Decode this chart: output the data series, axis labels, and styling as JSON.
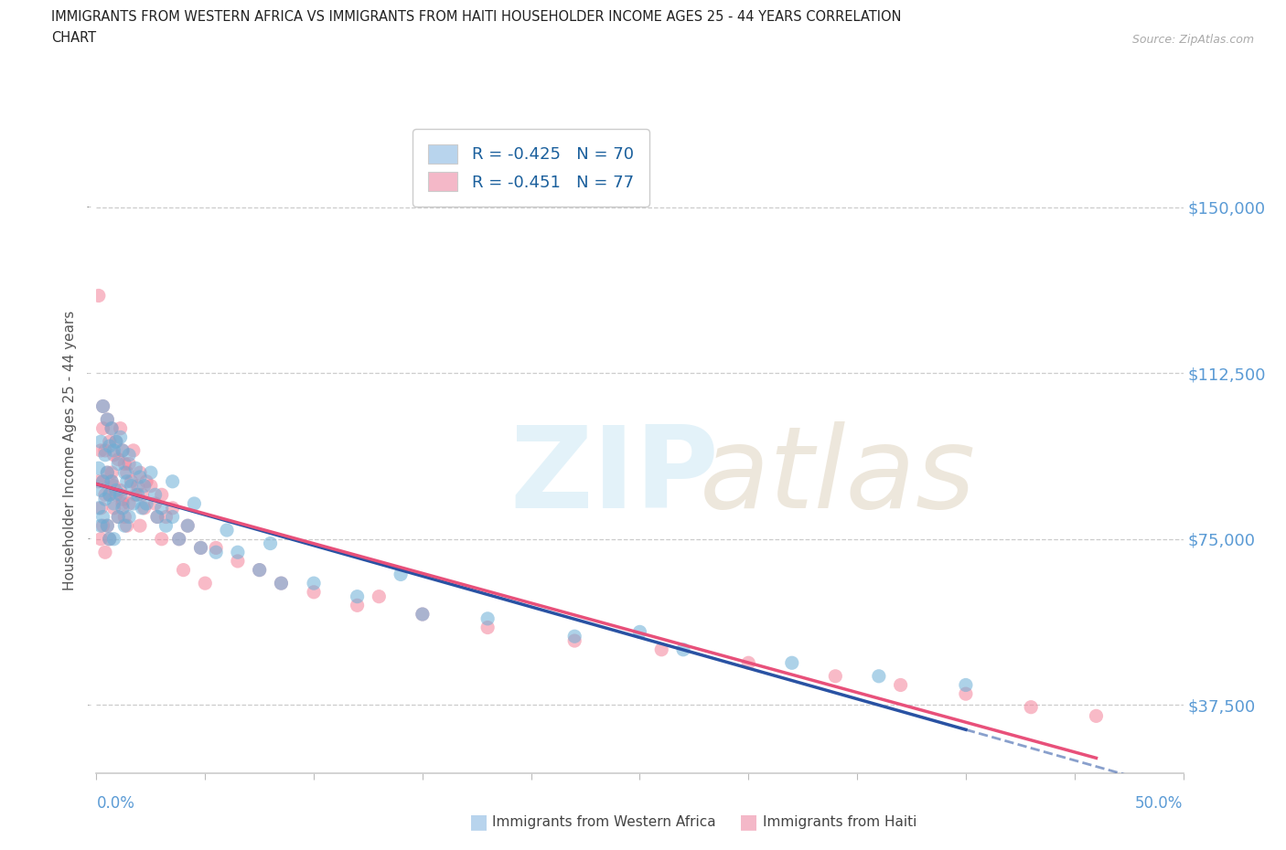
{
  "title_line1": "IMMIGRANTS FROM WESTERN AFRICA VS IMMIGRANTS FROM HAITI HOUSEHOLDER INCOME AGES 25 - 44 YEARS CORRELATION",
  "title_line2": "CHART",
  "source": "Source: ZipAtlas.com",
  "ylabel": "Householder Income Ages 25 - 44 years",
  "y_ticks": [
    37500,
    75000,
    112500,
    150000
  ],
  "y_tick_labels": [
    "$37,500",
    "$75,000",
    "$112,500",
    "$150,000"
  ],
  "legend1_label": "R = -0.425   N = 70",
  "legend2_label": "R = -0.451   N = 77",
  "legend1_fill": "#b8d4ed",
  "legend2_fill": "#f4b8c8",
  "blue_dot_color": "#6aaed6",
  "pink_dot_color": "#f4829a",
  "blue_line_color": "#2952a3",
  "pink_line_color": "#e8507a",
  "tick_label_color": "#5b9bd5",
  "legend_text_color": "#1a5f9c",
  "background_color": "#ffffff",
  "x_min": 0.0,
  "x_max": 0.5,
  "y_min": 22000,
  "y_max": 168000,
  "blue_scatter_x": [
    0.001,
    0.001,
    0.002,
    0.002,
    0.002,
    0.003,
    0.003,
    0.003,
    0.004,
    0.004,
    0.005,
    0.005,
    0.005,
    0.006,
    0.006,
    0.006,
    0.007,
    0.007,
    0.008,
    0.008,
    0.008,
    0.009,
    0.009,
    0.01,
    0.01,
    0.011,
    0.011,
    0.012,
    0.012,
    0.013,
    0.013,
    0.014,
    0.015,
    0.015,
    0.016,
    0.017,
    0.018,
    0.019,
    0.02,
    0.021,
    0.022,
    0.023,
    0.025,
    0.027,
    0.028,
    0.03,
    0.032,
    0.035,
    0.038,
    0.042,
    0.048,
    0.055,
    0.065,
    0.075,
    0.085,
    0.1,
    0.12,
    0.15,
    0.18,
    0.22,
    0.27,
    0.32,
    0.36,
    0.4,
    0.035,
    0.045,
    0.06,
    0.08,
    0.14,
    0.25
  ],
  "blue_scatter_y": [
    91000,
    82000,
    97000,
    86000,
    78000,
    105000,
    88000,
    80000,
    94000,
    84000,
    102000,
    90000,
    78000,
    96000,
    85000,
    75000,
    100000,
    88000,
    95000,
    83000,
    75000,
    97000,
    86000,
    92000,
    80000,
    98000,
    85000,
    95000,
    82000,
    90000,
    78000,
    88000,
    94000,
    80000,
    87000,
    83000,
    91000,
    85000,
    89000,
    82000,
    87000,
    83000,
    90000,
    85000,
    80000,
    82000,
    78000,
    80000,
    75000,
    78000,
    73000,
    72000,
    72000,
    68000,
    65000,
    65000,
    62000,
    58000,
    57000,
    53000,
    50000,
    47000,
    44000,
    42000,
    88000,
    83000,
    77000,
    74000,
    67000,
    54000
  ],
  "pink_scatter_x": [
    0.001,
    0.001,
    0.002,
    0.002,
    0.002,
    0.003,
    0.003,
    0.003,
    0.004,
    0.004,
    0.004,
    0.005,
    0.005,
    0.005,
    0.006,
    0.006,
    0.006,
    0.007,
    0.007,
    0.008,
    0.008,
    0.009,
    0.009,
    0.01,
    0.01,
    0.011,
    0.011,
    0.012,
    0.012,
    0.013,
    0.013,
    0.014,
    0.014,
    0.015,
    0.015,
    0.016,
    0.017,
    0.018,
    0.019,
    0.02,
    0.021,
    0.022,
    0.023,
    0.025,
    0.027,
    0.028,
    0.03,
    0.032,
    0.035,
    0.038,
    0.042,
    0.048,
    0.055,
    0.065,
    0.075,
    0.085,
    0.1,
    0.12,
    0.15,
    0.18,
    0.22,
    0.26,
    0.3,
    0.34,
    0.37,
    0.4,
    0.43,
    0.46,
    0.012,
    0.02,
    0.03,
    0.04,
    0.05,
    0.008,
    0.007,
    0.13,
    0.003
  ],
  "pink_scatter_y": [
    130000,
    88000,
    95000,
    82000,
    75000,
    100000,
    88000,
    78000,
    95000,
    85000,
    72000,
    102000,
    90000,
    78000,
    97000,
    85000,
    75000,
    100000,
    88000,
    94000,
    82000,
    97000,
    85000,
    93000,
    80000,
    100000,
    86000,
    95000,
    83000,
    92000,
    80000,
    90000,
    78000,
    92000,
    83000,
    88000,
    95000,
    85000,
    87000,
    90000,
    85000,
    82000,
    88000,
    87000,
    83000,
    80000,
    85000,
    80000,
    82000,
    75000,
    78000,
    73000,
    73000,
    70000,
    68000,
    65000,
    63000,
    60000,
    58000,
    55000,
    52000,
    50000,
    47000,
    44000,
    42000,
    40000,
    37000,
    35000,
    84000,
    78000,
    75000,
    68000,
    65000,
    87000,
    90000,
    62000,
    105000
  ]
}
